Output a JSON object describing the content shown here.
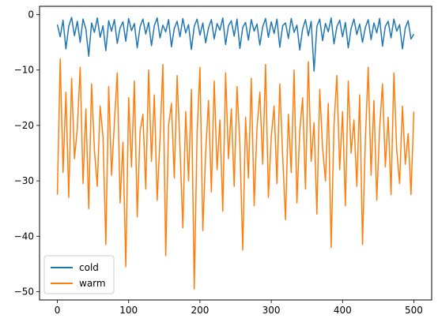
{
  "chart_data": {
    "type": "line",
    "title": "",
    "xlabel": "",
    "ylabel": "",
    "xlim": [
      -25,
      525
    ],
    "ylim": [
      -51.5,
      1.5
    ],
    "xticks": [
      0,
      100,
      200,
      300,
      400,
      500
    ],
    "yticks": [
      0,
      -10,
      -20,
      -30,
      -40,
      -50
    ],
    "grid": false,
    "legend": {
      "placement": "lower-left"
    },
    "colors": {
      "cold": "#1f77b4",
      "warm": "#ff7f0e"
    },
    "series": [
      {
        "name": "cold",
        "x": [
          0,
          4,
          8,
          12,
          16,
          20,
          24,
          28,
          32,
          36,
          40,
          44,
          48,
          52,
          56,
          60,
          64,
          68,
          72,
          76,
          80,
          84,
          88,
          92,
          96,
          100,
          104,
          108,
          112,
          116,
          120,
          124,
          128,
          132,
          136,
          140,
          144,
          148,
          152,
          156,
          160,
          164,
          168,
          172,
          176,
          180,
          184,
          188,
          192,
          196,
          200,
          204,
          208,
          212,
          216,
          220,
          224,
          228,
          232,
          236,
          240,
          244,
          248,
          252,
          256,
          260,
          264,
          268,
          272,
          276,
          280,
          284,
          288,
          292,
          296,
          300,
          304,
          308,
          312,
          316,
          320,
          324,
          328,
          332,
          336,
          340,
          344,
          348,
          352,
          356,
          360,
          364,
          368,
          372,
          376,
          380,
          384,
          388,
          392,
          396,
          400,
          404,
          408,
          412,
          416,
          420,
          424,
          428,
          432,
          436,
          440,
          444,
          448,
          452,
          456,
          460,
          464,
          468,
          472,
          476,
          480,
          484,
          488,
          492,
          496,
          500
        ],
        "y": [
          -1.8,
          -4.0,
          -1.0,
          -6.2,
          -2.1,
          -0.5,
          -3.8,
          -1.2,
          -5.0,
          -0.8,
          -2.6,
          -7.5,
          -1.5,
          -3.2,
          -0.6,
          -4.1,
          -2.0,
          -6.5,
          -1.1,
          -3.0,
          -0.9,
          -5.2,
          -2.4,
          -1.3,
          -4.8,
          -0.7,
          -2.9,
          -1.6,
          -6.0,
          -2.2,
          -0.8,
          -3.5,
          -1.4,
          -5.6,
          -2.0,
          -0.6,
          -4.2,
          -1.9,
          -3.1,
          -0.9,
          -5.8,
          -2.5,
          -1.2,
          -4.0,
          -0.7,
          -3.3,
          -1.8,
          -6.3,
          -2.1,
          -0.8,
          -3.7,
          -1.5,
          -5.1,
          -2.4,
          -0.9,
          -4.4,
          -1.6,
          -2.8,
          -0.6,
          -5.4,
          -2.0,
          -1.1,
          -3.9,
          -0.8,
          -6.1,
          -2.3,
          -1.4,
          -4.6,
          -0.9,
          -3.0,
          -1.7,
          -5.5,
          -2.2,
          -0.7,
          -4.1,
          -1.3,
          -3.4,
          -0.8,
          -5.9,
          -2.0,
          -1.5,
          -4.3,
          -0.7,
          -3.2,
          -1.9,
          -6.4,
          -2.6,
          -0.9,
          -3.8,
          -1.2,
          -10.2,
          -2.1,
          -0.8,
          -4.7,
          -1.6,
          -3.1,
          -0.6,
          -5.3,
          -2.2,
          -1.0,
          -4.0,
          -1.4,
          -6.0,
          -2.5,
          -0.8,
          -3.6,
          -1.7,
          -5.0,
          -2.3,
          -0.9,
          -4.5,
          -1.5,
          -3.3,
          -0.7,
          -5.7,
          -2.1,
          -1.2,
          -4.2,
          -0.8,
          -3.0,
          -1.8,
          -6.2,
          -2.4,
          -1.1,
          -4.4,
          -3.5
        ]
      },
      {
        "name": "warm",
        "x": [
          0,
          4,
          8,
          12,
          16,
          20,
          24,
          28,
          32,
          36,
          40,
          44,
          48,
          52,
          56,
          60,
          64,
          68,
          72,
          76,
          80,
          84,
          88,
          92,
          96,
          100,
          104,
          108,
          112,
          116,
          120,
          124,
          128,
          132,
          136,
          140,
          144,
          148,
          152,
          156,
          160,
          164,
          168,
          172,
          176,
          180,
          184,
          188,
          192,
          196,
          200,
          204,
          208,
          212,
          216,
          220,
          224,
          228,
          232,
          236,
          240,
          244,
          248,
          252,
          256,
          260,
          264,
          268,
          272,
          276,
          280,
          284,
          288,
          292,
          296,
          300,
          304,
          308,
          312,
          316,
          320,
          324,
          328,
          332,
          336,
          340,
          344,
          348,
          352,
          356,
          360,
          364,
          368,
          372,
          376,
          380,
          384,
          388,
          392,
          396,
          400,
          404,
          408,
          412,
          416,
          420,
          424,
          428,
          432,
          436,
          440,
          444,
          448,
          452,
          456,
          460,
          464,
          468,
          472,
          476,
          480,
          484,
          488,
          492,
          496,
          500
        ],
        "y": [
          -32.5,
          -8.0,
          -28.5,
          -14.0,
          -33.0,
          -11.5,
          -26.0,
          -20.5,
          -9.5,
          -30.5,
          -17.0,
          -35.0,
          -12.5,
          -24.5,
          -31.0,
          -16.5,
          -22.0,
          -41.5,
          -13.0,
          -29.0,
          -19.5,
          -10.5,
          -34.0,
          -23.0,
          -45.5,
          -15.0,
          -27.5,
          -12.0,
          -36.5,
          -21.0,
          -18.0,
          -31.5,
          -10.0,
          -26.5,
          -14.5,
          -33.5,
          -22.5,
          -9.0,
          -43.5,
          -20.0,
          -16.0,
          -29.5,
          -11.0,
          -24.0,
          -38.5,
          -17.5,
          -30.0,
          -13.5,
          -49.5,
          -21.5,
          -9.5,
          -39.0,
          -25.0,
          -15.5,
          -32.0,
          -12.0,
          -28.0,
          -19.0,
          -35.5,
          -10.5,
          -26.0,
          -17.0,
          -31.0,
          -13.0,
          -23.5,
          -42.5,
          -18.5,
          -29.5,
          -11.5,
          -34.5,
          -20.5,
          -14.0,
          -27.0,
          -9.0,
          -33.0,
          -22.0,
          -16.5,
          -30.5,
          -12.5,
          -25.5,
          -37.0,
          -18.0,
          -28.5,
          -10.0,
          -34.0,
          -21.0,
          -15.0,
          -31.5,
          -8.5,
          -26.5,
          -19.5,
          -36.0,
          -13.5,
          -24.0,
          -30.0,
          -16.0,
          -42.0,
          -20.0,
          -11.0,
          -28.0,
          -17.5,
          -34.5,
          -12.0,
          -25.0,
          -19.0,
          -31.0,
          -14.5,
          -41.5,
          -22.5,
          -9.5,
          -29.0,
          -15.5,
          -33.5,
          -20.5,
          -12.5,
          -27.5,
          -18.5,
          -32.5,
          -10.5,
          -24.5,
          -30.5,
          -16.5,
          -27.0,
          -21.5,
          -32.5,
          -17.5
        ]
      }
    ]
  }
}
